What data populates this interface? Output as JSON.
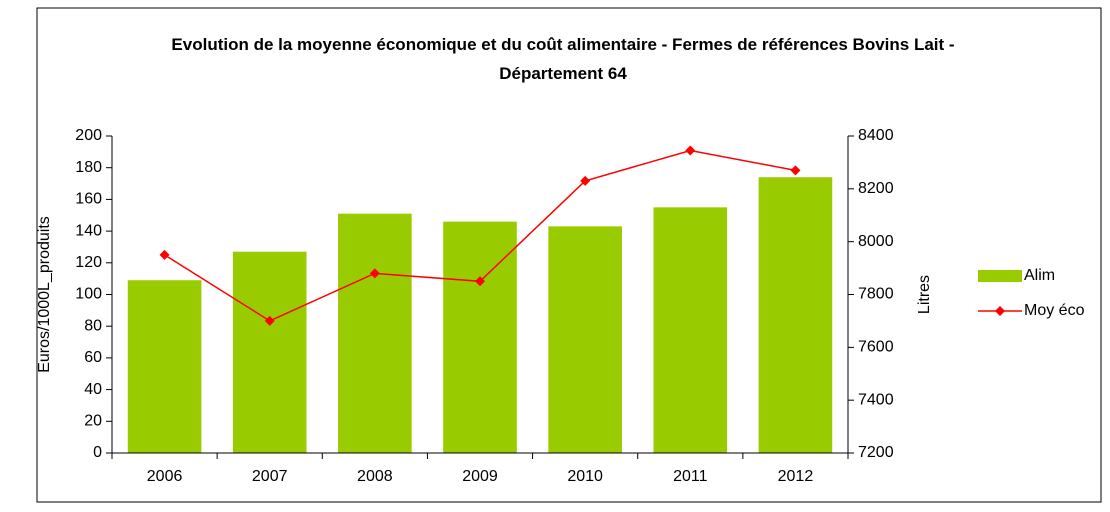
{
  "chart_data": {
    "type": "bar-line",
    "title": "Evolution de la moyenne économique et du coût alimentaire - Fermes de références Bovins Lait - Département 64",
    "categories": [
      "2006",
      "2007",
      "2008",
      "2009",
      "2010",
      "2011",
      "2012"
    ],
    "series": [
      {
        "name": "Alim",
        "type": "bar",
        "color": "#99cc00",
        "values": [
          109,
          127,
          151,
          146,
          143,
          155,
          174
        ]
      },
      {
        "name": "Moy éco",
        "type": "line",
        "color": "#ff0000",
        "axis": "y2",
        "values": [
          7950,
          7700,
          7880,
          7850,
          8230,
          8345,
          8270
        ]
      }
    ],
    "ylabel": "Euros/1000L_produits",
    "y2label": "Litres",
    "ylim": [
      0,
      200
    ],
    "yticks": [
      0,
      20,
      40,
      60,
      80,
      100,
      120,
      140,
      160,
      180,
      200
    ],
    "y2lim": [
      7200,
      8400
    ],
    "y2ticks": [
      7200,
      7400,
      7600,
      7800,
      8000,
      8200,
      8400
    ],
    "legend": "right",
    "grid": false
  }
}
